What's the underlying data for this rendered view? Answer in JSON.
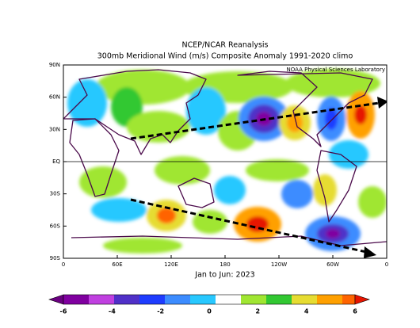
{
  "header": {
    "title": "NCEP/NCAR Reanalysis",
    "subtitle": "300mb Meridional Wind (m/s) Composite Anomaly 1991-2020 climo"
  },
  "map": {
    "lat_labels": [
      "90N",
      "60N",
      "30N",
      "EQ",
      "30S",
      "60S",
      "90S"
    ],
    "lon_labels": [
      "0",
      "60E",
      "120E",
      "180",
      "120W",
      "60W",
      "0"
    ],
    "credit": "NOAA Physical Sciences Laboratory",
    "period": "Jan to Jun: 2023"
  },
  "colorbar": {
    "labels": [
      "-6",
      "-4",
      "-2",
      "0",
      "2",
      "4",
      "6"
    ]
  }
}
